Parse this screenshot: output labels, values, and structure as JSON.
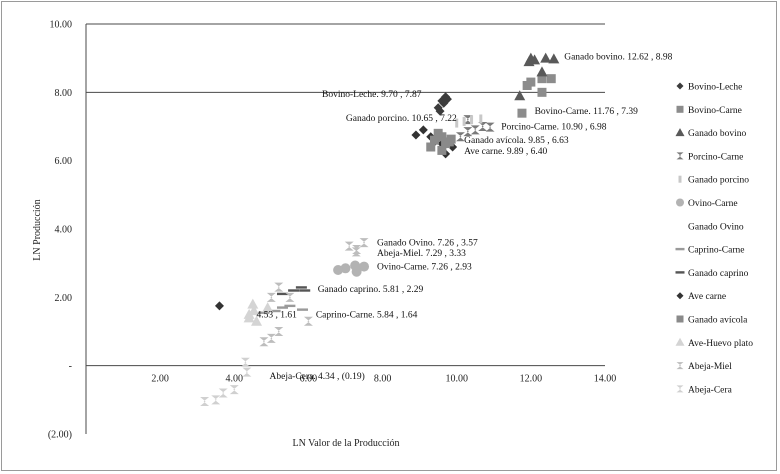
{
  "chart_data": {
    "type": "scatter",
    "xlabel": "LN Valor de la Producción",
    "ylabel": "LN Producción",
    "xlim": [
      0,
      14
    ],
    "ylim": [
      -2,
      10
    ],
    "xticks": [
      {
        "v": 2,
        "label": "2.00"
      },
      {
        "v": 4,
        "label": "4.00"
      },
      {
        "v": 6,
        "label": "6.00"
      },
      {
        "v": 8,
        "label": "8.00"
      },
      {
        "v": 10,
        "label": "10.00"
      },
      {
        "v": 12,
        "label": "12.00"
      },
      {
        "v": 14,
        "label": "14.00"
      }
    ],
    "yticks": [
      {
        "v": 10,
        "label": "10.00"
      },
      {
        "v": 8,
        "label": "8.00"
      },
      {
        "v": 6,
        "label": "6.00"
      },
      {
        "v": 4,
        "label": "4.00"
      },
      {
        "v": 2,
        "label": "2.00"
      },
      {
        "v": 0,
        "label": "-"
      },
      {
        "v": -2,
        "label": "(2.00)"
      }
    ],
    "gridlines_y": [
      8,
      10
    ],
    "legend_position": "right",
    "series": [
      {
        "name": "Bovino-Leche",
        "marker": "diamond",
        "color": "#3c3c3c",
        "points": [
          [
            9.7,
            7.87
          ],
          [
            9.6,
            7.75
          ],
          [
            9.5,
            7.55
          ],
          [
            9.65,
            7.68
          ],
          [
            9.55,
            7.45
          ],
          [
            9.75,
            7.8
          ]
        ]
      },
      {
        "name": "Bovino-Carne",
        "marker": "square",
        "color": "#8c8c8c",
        "points": [
          [
            11.76,
            7.39
          ],
          [
            12.0,
            8.3
          ],
          [
            12.3,
            8.4
          ],
          [
            12.55,
            8.4
          ],
          [
            12.3,
            8.0
          ],
          [
            11.9,
            8.2
          ]
        ]
      },
      {
        "name": "Ganado bovino",
        "marker": "triangle",
        "color": "#595959",
        "points": [
          [
            12.62,
            8.98
          ],
          [
            12.0,
            9.0
          ],
          [
            12.1,
            8.95
          ],
          [
            12.4,
            9.0
          ],
          [
            12.3,
            8.6
          ],
          [
            11.7,
            7.9
          ],
          [
            11.95,
            8.9
          ]
        ]
      },
      {
        "name": "Porcino-Carne",
        "marker": "hourglass",
        "color": "#7a7a7a",
        "points": [
          [
            10.9,
            6.98
          ],
          [
            10.5,
            6.9
          ],
          [
            10.3,
            6.85
          ],
          [
            10.7,
            7.0
          ],
          [
            10.1,
            6.7
          ],
          [
            10.3,
            7.2
          ]
        ]
      },
      {
        "name": "Ganado porcino",
        "marker": "bar",
        "color": "#c8c8c8",
        "points": [
          [
            10.65,
            7.22
          ],
          [
            10.4,
            7.2
          ],
          [
            10.2,
            7.15
          ],
          [
            10.0,
            7.1
          ]
        ]
      },
      {
        "name": "Ovino-Carne",
        "marker": "circle",
        "color": "#b3b3b3",
        "points": [
          [
            7.26,
            2.93
          ],
          [
            7.0,
            2.85
          ],
          [
            7.5,
            2.9
          ],
          [
            6.8,
            2.8
          ],
          [
            7.3,
            2.75
          ]
        ]
      },
      {
        "name": "Ganado Ovino",
        "marker": "none",
        "color": "#ffffff",
        "points": [
          [
            7.26,
            3.57
          ]
        ]
      },
      {
        "name": "Caprino-Carne",
        "marker": "dash",
        "color": "#9a9a9a",
        "points": [
          [
            5.84,
            1.64
          ],
          [
            5.3,
            1.7
          ],
          [
            5.1,
            1.6
          ],
          [
            5.5,
            1.75
          ],
          [
            4.8,
            1.55
          ]
        ]
      },
      {
        "name": "Ganado caprino",
        "marker": "dash",
        "color": "#555555",
        "points": [
          [
            5.81,
            2.29
          ],
          [
            5.6,
            2.2
          ],
          [
            5.3,
            2.1
          ],
          [
            5.9,
            2.2
          ]
        ]
      },
      {
        "name": "Ave carne",
        "marker": "diamond",
        "color": "#333333",
        "points": [
          [
            9.89,
            6.4
          ],
          [
            9.7,
            6.2
          ],
          [
            9.6,
            6.5
          ],
          [
            9.3,
            6.7
          ],
          [
            9.4,
            6.55
          ],
          [
            9.1,
            6.9
          ],
          [
            8.9,
            6.75
          ],
          [
            3.6,
            1.75
          ]
        ]
      },
      {
        "name": "Ganado avícola",
        "marker": "square",
        "color": "#8a8a8a",
        "points": [
          [
            9.85,
            6.63
          ],
          [
            9.6,
            6.7
          ],
          [
            9.7,
            6.5
          ],
          [
            9.4,
            6.6
          ],
          [
            9.5,
            6.8
          ],
          [
            9.3,
            6.4
          ],
          [
            9.6,
            6.3
          ],
          [
            9.8,
            6.55
          ]
        ]
      },
      {
        "name": "Ave-Huevo plato",
        "marker": "triangle",
        "color": "#d4d4d4",
        "points": [
          [
            4.53,
            1.61
          ],
          [
            4.4,
            1.4
          ],
          [
            4.6,
            1.3
          ],
          [
            4.5,
            1.8
          ],
          [
            4.9,
            1.7
          ],
          [
            4.4,
            1.5
          ]
        ]
      },
      {
        "name": "Abeja-Miel",
        "marker": "hourglass",
        "color": "#bdbdbd",
        "points": [
          [
            7.29,
            3.33
          ],
          [
            7.5,
            3.6
          ],
          [
            7.3,
            3.4
          ],
          [
            7.1,
            3.5
          ],
          [
            5.2,
            2.3
          ],
          [
            5.0,
            2.0
          ],
          [
            5.5,
            2.0
          ],
          [
            6.0,
            1.3
          ],
          [
            5.2,
            1.0
          ],
          [
            5.0,
            0.8
          ],
          [
            4.8,
            0.7
          ]
        ]
      },
      {
        "name": "Abeja-Cera",
        "marker": "hourglass",
        "color": "#d0d0d0",
        "points": [
          [
            4.34,
            -0.19
          ],
          [
            4.3,
            0.1
          ],
          [
            4.0,
            -0.7
          ],
          [
            3.5,
            -1.0
          ],
          [
            3.2,
            -1.05
          ],
          [
            3.7,
            -0.8
          ]
        ]
      }
    ],
    "annotations": [
      {
        "text": "Ganado bovino. 12.62 , 8.98",
        "x": 12.9,
        "y": 9.05,
        "anchor": "start"
      },
      {
        "text": "Bovino-Leche. 9.70 , 7.87",
        "x": 9.05,
        "y": 7.95,
        "anchor": "end"
      },
      {
        "text": "Bovino-Carne. 11.76 , 7.39",
        "x": 12.1,
        "y": 7.45,
        "anchor": "start"
      },
      {
        "text": "Ganado porcino. 10.65 , 7.22",
        "x": 10.0,
        "y": 7.25,
        "anchor": "end"
      },
      {
        "text": "Porcino-Carne. 10.90 , 6.98",
        "x": 11.2,
        "y": 7.0,
        "anchor": "start"
      },
      {
        "text": "Ganado avícola. 9.85 , 6.63",
        "x": 10.2,
        "y": 6.6,
        "anchor": "start"
      },
      {
        "text": "Ave carne. 9.89 , 6.40",
        "x": 10.2,
        "y": 6.28,
        "anchor": "start"
      },
      {
        "text": "Ganado Ovino. 7.26 , 3.57",
        "x": 7.85,
        "y": 3.6,
        "anchor": "start"
      },
      {
        "text": "Abeja-Miel. 7.29 , 3.33",
        "x": 7.85,
        "y": 3.3,
        "anchor": "start"
      },
      {
        "text": "Ovino-Carne. 7.26 , 2.93",
        "x": 7.85,
        "y": 2.9,
        "anchor": "start"
      },
      {
        "text": "Ganado caprino. 5.81 , 2.29",
        "x": 6.25,
        "y": 2.25,
        "anchor": "start"
      },
      {
        "text": "4.53 , 1.61",
        "x": 4.6,
        "y": 1.5,
        "anchor": "start"
      },
      {
        "text": "Caprino-Carne. 5.84 , 1.64",
        "x": 6.2,
        "y": 1.5,
        "anchor": "start"
      },
      {
        "text": "Abeja-Cera. 4.34 , (0.19)",
        "x": 4.95,
        "y": -0.3,
        "anchor": "start"
      }
    ]
  }
}
